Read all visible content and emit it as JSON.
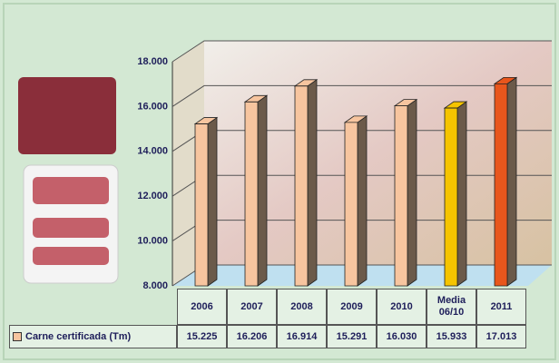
{
  "chart_data": {
    "type": "bar3d",
    "categories": [
      "2006",
      "2007",
      "2008",
      "2009",
      "2010",
      "Media 06/10",
      "2011"
    ],
    "series": [
      {
        "name": "Carne certificada (Tm)",
        "color": "#f7c59f",
        "point_colors": [
          "#f7c59f",
          "#f7c59f",
          "#f7c59f",
          "#f7c59f",
          "#f7c59f",
          "#f5c400",
          "#e8561c"
        ],
        "values": [
          15225,
          16206,
          16914,
          15291,
          16030,
          15933,
          17013
        ],
        "value_labels": [
          "15.225",
          "16.206",
          "16.914",
          "15.291",
          "16.030",
          "15.933",
          "17.013"
        ]
      }
    ],
    "ylim": [
      8000,
      18000
    ],
    "yticks": [
      {
        "value": 8000,
        "label": "8.000"
      },
      {
        "value": 10000,
        "label": "10.000"
      },
      {
        "value": 12000,
        "label": "12.000"
      },
      {
        "value": 14000,
        "label": "14.000"
      },
      {
        "value": 16000,
        "label": "16.000"
      },
      {
        "value": 18000,
        "label": "18.000"
      }
    ],
    "grid": true
  }
}
